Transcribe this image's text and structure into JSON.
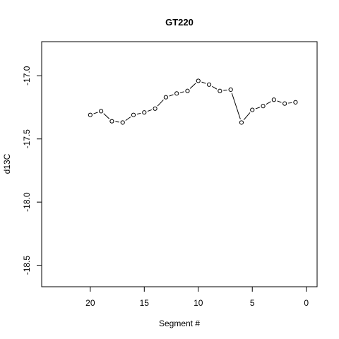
{
  "chart_data": {
    "type": "line",
    "title": "GT220",
    "xlabel": "Segment #",
    "ylabel": "d13C",
    "xlim": [
      24.5,
      -1
    ],
    "ylim": [
      -18.67,
      -16.73
    ],
    "x_ticks": [
      20,
      15,
      10,
      5,
      0
    ],
    "x_tick_labels": [
      "20",
      "15",
      "10",
      "5",
      "0"
    ],
    "y_ticks": [
      -17.0,
      -17.5,
      -18.0,
      -18.5
    ],
    "y_tick_labels": [
      "-17.0",
      "-17.5",
      "-18.0",
      "-18.5"
    ],
    "marker": "open-circle",
    "line_style": "solid, broken around markers",
    "series": [
      {
        "x": [
          20,
          19,
          18,
          17,
          16,
          15,
          14,
          13,
          12,
          11,
          10,
          9,
          8,
          7,
          6,
          5,
          4,
          3,
          2,
          1
        ],
        "values": [
          -17.31,
          -17.28,
          -17.36,
          -17.37,
          -17.31,
          -17.29,
          -17.26,
          -17.17,
          -17.14,
          -17.12,
          -17.04,
          -17.07,
          -17.12,
          -17.11,
          -17.37,
          -17.27,
          -17.24,
          -17.19,
          -17.22,
          -17.21
        ]
      }
    ],
    "grid": false,
    "colors": {
      "line": "#000000",
      "marker": "#000000",
      "background": "#ffffff"
    }
  }
}
